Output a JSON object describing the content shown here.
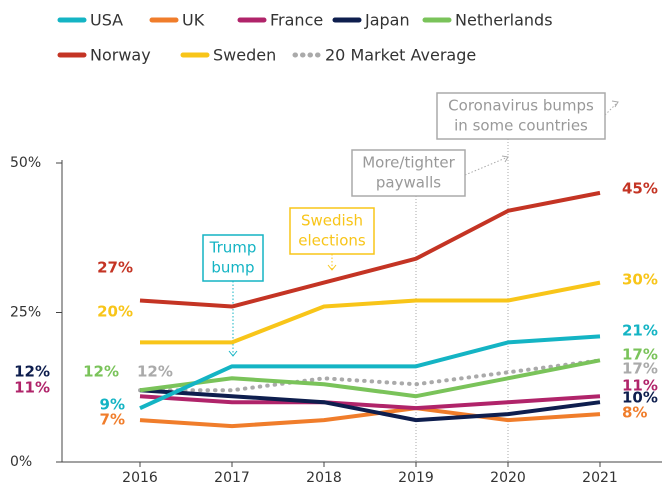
{
  "chart_data": {
    "type": "line",
    "categories": [
      "2016",
      "2017",
      "2018",
      "2019",
      "2020",
      "2021"
    ],
    "ylim": [
      0,
      50
    ],
    "yticks": [
      {
        "value": 0,
        "label": "0%"
      },
      {
        "value": 25,
        "label": "25%"
      },
      {
        "value": 50,
        "label": "50%"
      }
    ],
    "legend": "top",
    "series": [
      {
        "name": "USA",
        "color": "#14b4c4",
        "values": [
          9,
          16,
          16,
          16,
          20,
          21
        ],
        "value_labels": [
          "9%",
          null,
          null,
          null,
          null,
          "21%"
        ]
      },
      {
        "name": "UK",
        "color": "#f07d2b",
        "values": [
          7,
          6,
          7,
          9,
          7,
          8
        ],
        "value_labels": [
          "7%",
          null,
          null,
          null,
          null,
          "8%"
        ]
      },
      {
        "name": "France",
        "color": "#b0246a",
        "values": [
          11,
          10,
          10,
          9,
          10,
          11
        ],
        "value_labels": [
          "11%",
          null,
          null,
          null,
          null,
          "11%"
        ]
      },
      {
        "name": "Japan",
        "color": "#0e1e4e",
        "values": [
          12,
          11,
          10,
          7,
          8,
          10
        ],
        "value_labels": [
          "12%",
          null,
          null,
          null,
          null,
          "10%"
        ]
      },
      {
        "name": "Netherlands",
        "color": "#7ac35a",
        "values": [
          12,
          14,
          13,
          11,
          14,
          17
        ],
        "value_labels": [
          "12%",
          null,
          null,
          null,
          null,
          "17%"
        ]
      },
      {
        "name": "Norway",
        "color": "#c43424",
        "values": [
          27,
          26,
          30,
          34,
          42,
          45
        ],
        "value_labels": [
          "27%",
          null,
          null,
          null,
          null,
          "45%"
        ]
      },
      {
        "name": "Sweden",
        "color": "#f8c519",
        "values": [
          20,
          20,
          26,
          27,
          27,
          30
        ],
        "value_labels": [
          "20%",
          null,
          null,
          null,
          null,
          "30%"
        ]
      },
      {
        "name": "20 Market Average",
        "color": "#aaaaaa",
        "dotted": true,
        "values": [
          12,
          12,
          14,
          13,
          15,
          17
        ],
        "value_labels": [
          "12%",
          null,
          null,
          null,
          null,
          "17%"
        ]
      }
    ],
    "annotations": [
      {
        "lines": [
          "Trump",
          "bump"
        ],
        "category": "2017",
        "color": "#14b4c4"
      },
      {
        "lines": [
          "Swedish",
          "elections"
        ],
        "category": "2018",
        "color": "#f8c519"
      },
      {
        "lines": [
          "More/tighter",
          "paywalls"
        ],
        "category": "2019",
        "color": "#aaaaaa"
      },
      {
        "lines": [
          "Coronavirus bumps",
          "in some countries"
        ],
        "category": "2020",
        "color": "#aaaaaa"
      }
    ]
  }
}
